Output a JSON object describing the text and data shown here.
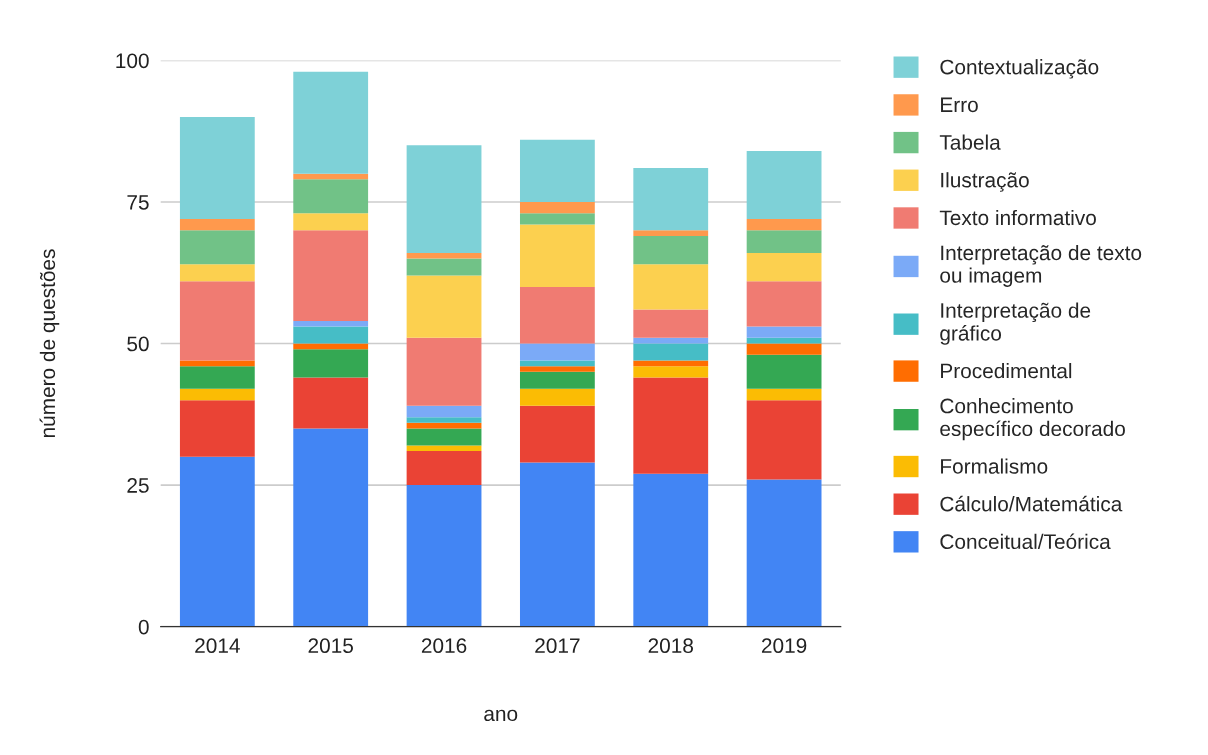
{
  "chart_data": {
    "type": "bar",
    "stacked": true,
    "xlabel": "ano",
    "ylabel": "número de questões",
    "categories": [
      "2014",
      "2015",
      "2016",
      "2017",
      "2018",
      "2019"
    ],
    "ylim": [
      0,
      100
    ],
    "yticks": [
      0,
      25,
      50,
      75,
      100
    ],
    "grid": "y",
    "legend": "right",
    "series": [
      {
        "name": "Conceitual/Teórica",
        "color": "#4285f4",
        "values": [
          30,
          35,
          25,
          29,
          27,
          26
        ]
      },
      {
        "name": "Cálculo/Matemática",
        "color": "#ea4335",
        "values": [
          10,
          9,
          6,
          10,
          17,
          14
        ]
      },
      {
        "name": "Formalismo",
        "color": "#fbbc04",
        "values": [
          2,
          0,
          1,
          3,
          2,
          2
        ]
      },
      {
        "name": "Conhecimento\nespecífico decorado",
        "color": "#34a853",
        "values": [
          4,
          5,
          3,
          3,
          0,
          6
        ]
      },
      {
        "name": "Procedimental",
        "color": "#ff6d01",
        "values": [
          1,
          1,
          1,
          1,
          1,
          2
        ]
      },
      {
        "name": "Interpretação de\ngráfico",
        "color": "#46bdc6",
        "values": [
          0,
          3,
          1,
          1,
          3,
          1
        ]
      },
      {
        "name": "Interpretação de texto\nou imagem",
        "color": "#7baaf7",
        "values": [
          0,
          1,
          2,
          3,
          1,
          2
        ]
      },
      {
        "name": "Texto informativo",
        "color": "#f07b72",
        "values": [
          14,
          16,
          12,
          10,
          5,
          8
        ]
      },
      {
        "name": "Ilustração",
        "color": "#fcd04f",
        "values": [
          3,
          3,
          11,
          11,
          8,
          5
        ]
      },
      {
        "name": "Tabela",
        "color": "#71c287",
        "values": [
          6,
          6,
          3,
          2,
          5,
          4
        ]
      },
      {
        "name": "Erro",
        "color": "#ff994d",
        "values": [
          2,
          1,
          1,
          2,
          1,
          2
        ]
      },
      {
        "name": "Contextualização",
        "color": "#7ed1d7",
        "values": [
          18,
          18,
          19,
          11,
          11,
          12
        ]
      }
    ]
  }
}
